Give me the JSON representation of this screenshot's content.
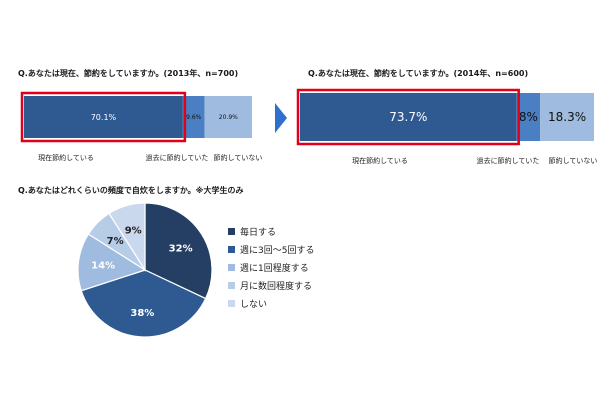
{
  "colors": {
    "dark_blue": "#2f5a91",
    "mid_blue": "#4a7fc4",
    "light_blue": "#9fbbdf",
    "pale_blue": "#c9d8ec",
    "navy": "#243f63",
    "highlight_red": "#e0001a",
    "arrow_blue": "#2e6fd0"
  },
  "chart_data": [
    {
      "type": "bar",
      "orientation": "horizontal-stacked",
      "title": "Q.あなたは現在、節約をしていますか。(2013年、n=700)",
      "categories": [
        "現在節約している",
        "過去に節約していた",
        "節約していない"
      ],
      "values": [
        70.1,
        9.6,
        20.9
      ],
      "value_labels": [
        "70.1%",
        "9.6%",
        "20.9%"
      ],
      "unit": "%"
    },
    {
      "type": "bar",
      "orientation": "horizontal-stacked",
      "title": "Q.あなたは現在、節約をしていますか。(2014年、n=600)",
      "categories": [
        "現在節約している",
        "過去に節約していた",
        "節約していない"
      ],
      "values": [
        73.7,
        8.0,
        18.3
      ],
      "value_labels": [
        "73.7%",
        "8%",
        "18.3%"
      ],
      "unit": "%"
    },
    {
      "type": "pie",
      "title": "Q.あなたはどれくらいの頻度で自炊をしますか。※大学生のみ",
      "categories": [
        "毎日する",
        "週に3回～5回する",
        "週に1回程度する",
        "月に数回程度する",
        "しない"
      ],
      "values": [
        32,
        38,
        14,
        7,
        9
      ],
      "value_labels": [
        "32%",
        "38%",
        "14%",
        "7%",
        "9%"
      ],
      "unit": "%",
      "legend_position": "right"
    }
  ]
}
